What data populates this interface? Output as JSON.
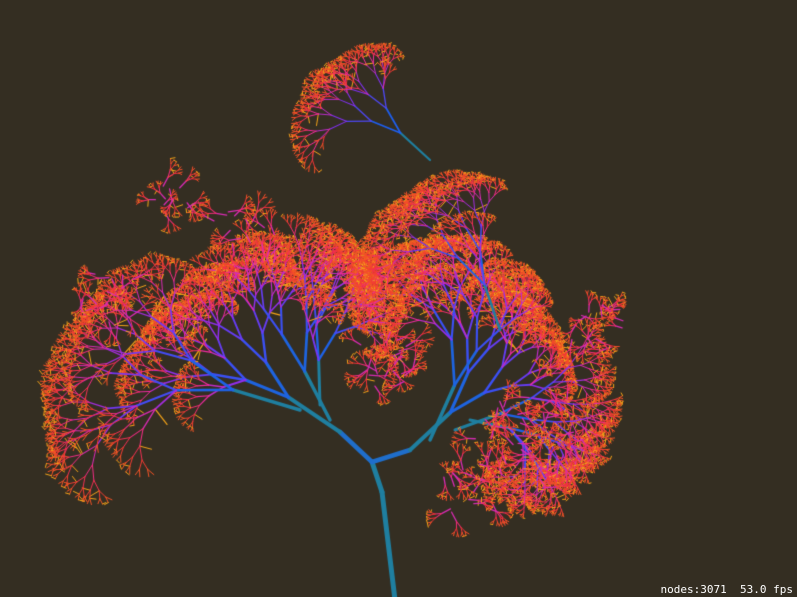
{
  "hud": {
    "nodes_label": "nodes:",
    "nodes_value": "3071",
    "fps_value": "53.0",
    "fps_label": "fps"
  },
  "colors": {
    "background": "#342e22",
    "trunk": "#1f7fa0",
    "root_blue": "#1e5cf5",
    "mid_violet": "#8a2ef5",
    "magenta": "#f22a9e",
    "red": "#f2303a",
    "orange": "#f56a18",
    "amber": "#f5a418",
    "hud_text": "#ffffff"
  },
  "icons": {
    "fractal": "fractal-tree"
  }
}
